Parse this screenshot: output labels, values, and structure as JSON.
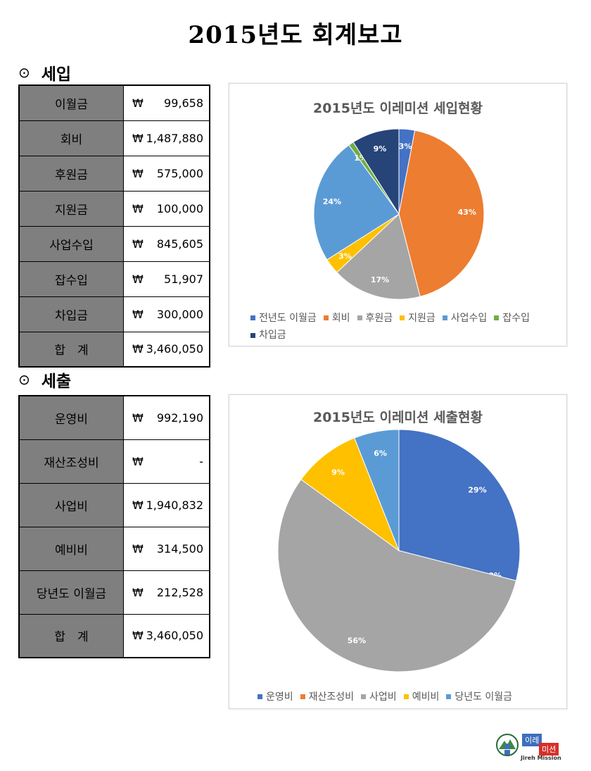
{
  "page": {
    "title": "2015년도 회계보고"
  },
  "income": {
    "heading": "세입",
    "bullet": "⊙",
    "rows": [
      {
        "label": "이월금",
        "currency": "₩",
        "amount": "99,658"
      },
      {
        "label": "회비",
        "currency": "₩",
        "amount": "1,487,880"
      },
      {
        "label": "후원금",
        "currency": "₩",
        "amount": "575,000"
      },
      {
        "label": "지원금",
        "currency": "₩",
        "amount": "100,000"
      },
      {
        "label": "사업수입",
        "currency": "₩",
        "amount": "845,605"
      },
      {
        "label": "잡수입",
        "currency": "₩",
        "amount": "51,907"
      },
      {
        "label": "차입금",
        "currency": "₩",
        "amount": "300,000"
      },
      {
        "label": "합　계",
        "currency": "₩",
        "amount": "3,460,050"
      }
    ]
  },
  "expense": {
    "heading": "세출",
    "bullet": "⊙",
    "rows": [
      {
        "label": "운영비",
        "currency": "₩",
        "amount": "992,190"
      },
      {
        "label": "재산조성비",
        "currency": "₩",
        "amount": "-"
      },
      {
        "label": "사업비",
        "currency": "₩",
        "amount": "1,940,832"
      },
      {
        "label": "예비비",
        "currency": "₩",
        "amount": "314,500"
      },
      {
        "label": "당년도 이월금",
        "currency": "₩",
        "amount": "212,528"
      },
      {
        "label": "합　계",
        "currency": "₩",
        "amount": "3,460,050"
      }
    ]
  },
  "chart_data": [
    {
      "type": "pie",
      "title": "2015년도 이레미션 세입현황",
      "categories": [
        "전년도 이월금",
        "회비",
        "후원금",
        "지원금",
        "사업수입",
        "잡수입",
        "차입금"
      ],
      "values": [
        3,
        43,
        17,
        3,
        24,
        1,
        9
      ],
      "labels": [
        "3%",
        "43%",
        "17%",
        "3%",
        "24%",
        "1%",
        "9%"
      ],
      "colors": [
        "#4472C4",
        "#ED7D31",
        "#A5A5A5",
        "#FFC000",
        "#5B9BD5",
        "#70AD47",
        "#264478"
      ],
      "legend": "bottom"
    },
    {
      "type": "pie",
      "title": "2015년도 이레미션 세출현황",
      "categories": [
        "운영비",
        "재산조성비",
        "사업비",
        "예비비",
        "당년도 이월금"
      ],
      "values": [
        29,
        0,
        56,
        9,
        6
      ],
      "labels": [
        "29%",
        "0%",
        "56%",
        "9%",
        "6%"
      ],
      "colors": [
        "#4472C4",
        "#ED7D31",
        "#A5A5A5",
        "#FFC000",
        "#5B9BD5"
      ],
      "legend": "bottom"
    }
  ],
  "logo": {
    "tag_top": "이레",
    "tag_bottom": "미션",
    "english": "Jireh Mission"
  }
}
